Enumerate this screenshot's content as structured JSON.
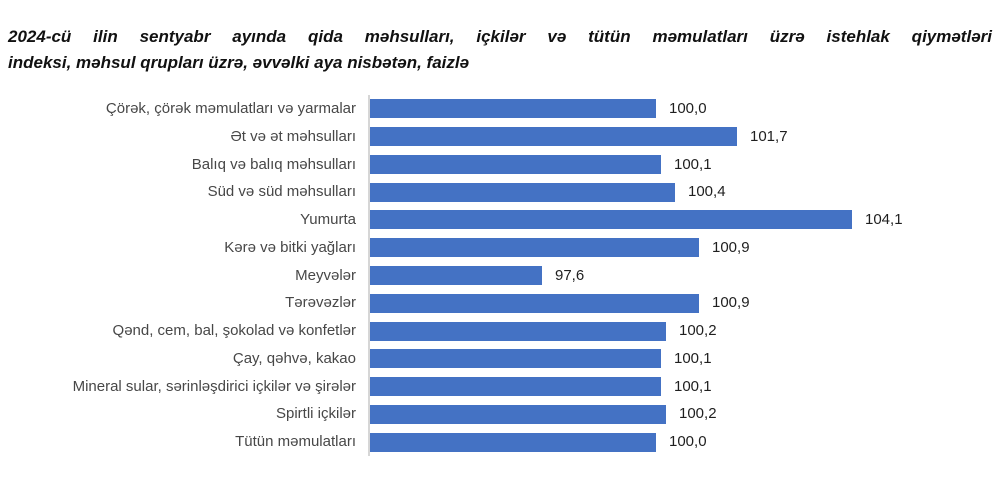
{
  "title": {
    "line1": "2024-cü ilin sentyabr ayında qida məhsulları, içkilər və tütün məmulatları üzrə istehlak qiymətləri",
    "line2": "indeksi, məhsul qrupları üzrə, əvvəlki aya nisbətən, faizlə"
  },
  "chart_data": {
    "type": "bar",
    "orientation": "horizontal",
    "title": "2024-cü ilin sentyabr ayında qida məhsulları, içkilər və tütün məmulatları üzrə istehlak qiymətləri indeksi, məhsul qrupları üzrə, əvvəlki aya nisbətən, faizlə",
    "categories": [
      "Çörək, çörək məmulatları və yarmalar",
      "Ət və ət məhsulları",
      "Balıq və balıq məhsulları",
      "Süd və süd məhsulları",
      "Yumurta",
      "Kərə və bitki yağları",
      "Meyvələr",
      "Tərəvəzlər",
      "Qənd, cem, bal, şokolad və konfetlər",
      "Çay, qəhvə, kakao",
      "Mineral sular, sərinləşdirici içkilər və şirələr",
      "Spirtli içkilər",
      "Tütün məmulatları"
    ],
    "values": [
      100.0,
      101.7,
      100.1,
      100.4,
      104.1,
      100.9,
      97.6,
      100.9,
      100.2,
      100.1,
      100.1,
      100.2,
      100.0
    ],
    "value_labels": [
      "100,0",
      "101,7",
      "100,1",
      "100,4",
      "104,1",
      "100,9",
      "97,6",
      "100,9",
      "100,2",
      "100,1",
      "100,1",
      "100,2",
      "100,0"
    ],
    "xlim": [
      94,
      107
    ],
    "grid": false,
    "legend": "none",
    "bar_color": "#4472C4",
    "axis_line_color": "#d6d6d6"
  }
}
